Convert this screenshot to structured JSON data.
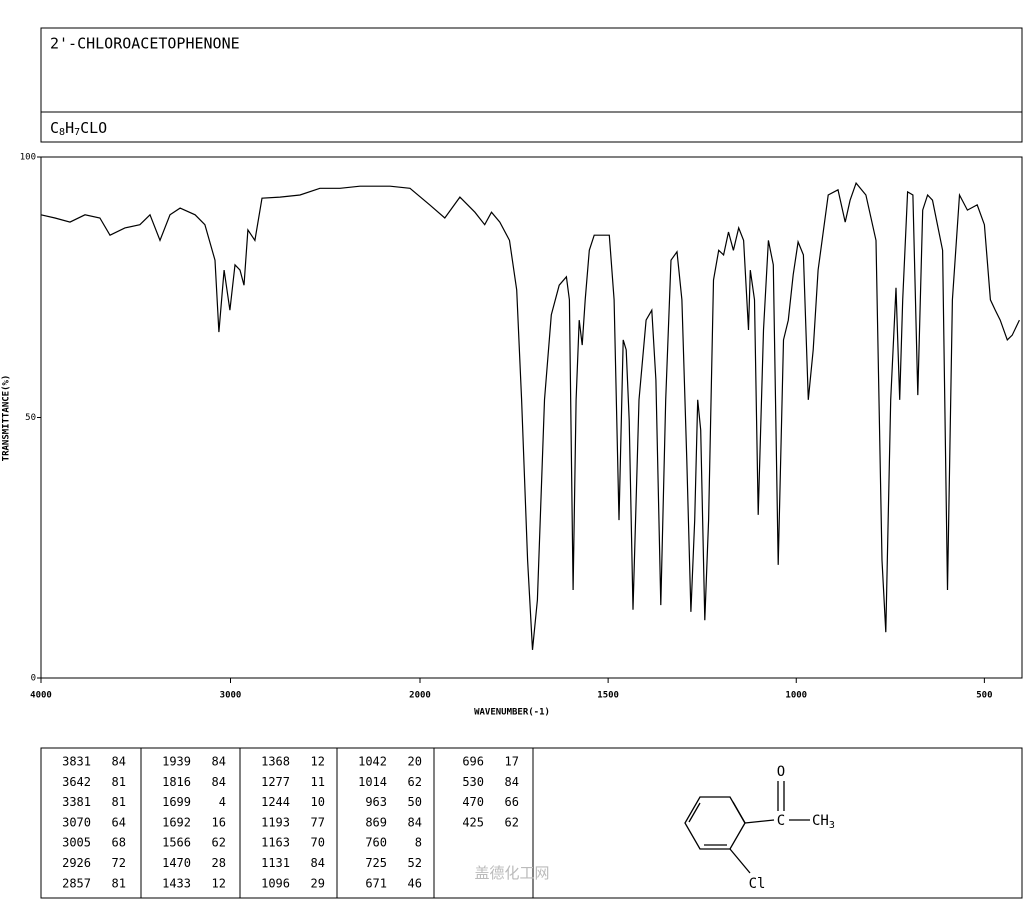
{
  "header": {
    "title": "2'-CHLOROACETOPHENONE",
    "formula": [
      "C",
      "8",
      "H",
      "7",
      "CLO"
    ]
  },
  "chart_data": {
    "type": "line",
    "y_label": "TRANSMITTANCE(%)",
    "x_label": "WAVENUMBER(-1)",
    "xlim": [
      4000,
      400
    ],
    "x_scale_break": 2000,
    "ylim": [
      0,
      100
    ],
    "xticks": [
      4000,
      3000,
      2000,
      1500,
      1000,
      500
    ],
    "yticks": [
      0,
      50,
      100
    ],
    "color": "#000000",
    "x": [
      4000,
      3926,
      3847,
      3768,
      3689,
      3636,
      3557,
      3478,
      3425,
      3372,
      3319,
      3266,
      3187,
      3135,
      3082,
      3061,
      3034,
      3003,
      2976,
      2950,
      2929,
      2908,
      2871,
      2834,
      2739,
      2633,
      2528,
      2422,
      2317,
      2158,
      2053,
      1974,
      1934,
      1894,
      1854,
      1828,
      1810,
      1788,
      1762,
      1743,
      1730,
      1714,
      1701,
      1688,
      1669,
      1651,
      1630,
      1611,
      1603,
      1593,
      1585,
      1577,
      1569,
      1561,
      1550,
      1537,
      1497,
      1484,
      1471,
      1460,
      1452,
      1444,
      1434,
      1418,
      1399,
      1384,
      1373,
      1360,
      1347,
      1333,
      1317,
      1304,
      1291,
      1280,
      1270,
      1262,
      1254,
      1243,
      1233,
      1220,
      1206,
      1193,
      1180,
      1167,
      1153,
      1140,
      1127,
      1122,
      1111,
      1101,
      1087,
      1074,
      1061,
      1048,
      1034,
      1021,
      1008,
      995,
      981,
      968,
      955,
      942,
      915,
      889,
      870,
      857,
      841,
      815,
      788,
      772,
      762,
      749,
      735,
      725,
      717,
      704,
      690,
      677,
      664,
      651,
      638,
      611,
      598,
      585,
      566,
      545,
      519,
      500,
      484,
      471,
      458,
      439,
      426,
      407
    ],
    "values": [
      88.9,
      88.3,
      87.5,
      88.9,
      88.3,
      85,
      86.4,
      87,
      88.9,
      84,
      88.9,
      90.2,
      88.9,
      87,
      80.2,
      66.4,
      78.3,
      70.6,
      79.3,
      78.3,
      75.4,
      86,
      84,
      92.1,
      92.3,
      92.7,
      94,
      94,
      94.4,
      94.4,
      94,
      90.8,
      88.3,
      92.3,
      89.4,
      87,
      89.4,
      87.5,
      84,
      74.5,
      53.4,
      22.6,
      5.4,
      15,
      53.4,
      69.7,
      75.4,
      77,
      72.6,
      16.9,
      53.4,
      68.7,
      63.9,
      72.6,
      82.1,
      85,
      85,
      72.6,
      30.3,
      64.9,
      63,
      49.5,
      13.1,
      53.4,
      68.7,
      70.6,
      57.2,
      14,
      53.4,
      80.2,
      81.8,
      72.6,
      41.8,
      12.7,
      30.3,
      53.4,
      47.6,
      11.1,
      30.3,
      76.4,
      82.1,
      81.2,
      85.6,
      82.1,
      86.4,
      84,
      66.8,
      78.3,
      72.6,
      31.3,
      66.8,
      84,
      79.3,
      21.7,
      64.9,
      68.7,
      77.4,
      83.7,
      81.2,
      53.4,
      63,
      78.3,
      92.7,
      93.7,
      87.5,
      91.7,
      95,
      92.7,
      84,
      22.6,
      8.8,
      53.4,
      74.9,
      53.4,
      72.6,
      93.3,
      92.7,
      54.3,
      89.8,
      92.7,
      91.7,
      82.1,
      16.9,
      72.6,
      92.7,
      89.8,
      90.8,
      87,
      72.6,
      70.6,
      68.7,
      64.9,
      65.8,
      68.7
    ]
  },
  "peak_table": {
    "columns": [
      [
        [
          3831,
          84
        ],
        [
          3642,
          81
        ],
        [
          3381,
          81
        ],
        [
          3070,
          64
        ],
        [
          3005,
          68
        ],
        [
          2926,
          72
        ],
        [
          2857,
          81
        ]
      ],
      [
        [
          1939,
          84
        ],
        [
          1816,
          84
        ],
        [
          1699,
          4
        ],
        [
          1692,
          16
        ],
        [
          1566,
          62
        ],
        [
          1470,
          28
        ],
        [
          1433,
          12
        ]
      ],
      [
        [
          1368,
          12
        ],
        [
          1277,
          11
        ],
        [
          1244,
          10
        ],
        [
          1193,
          77
        ],
        [
          1163,
          70
        ],
        [
          1131,
          84
        ],
        [
          1096,
          29
        ]
      ],
      [
        [
          1042,
          20
        ],
        [
          1014,
          62
        ],
        [
          963,
          50
        ],
        [
          869,
          84
        ],
        [
          760,
          8
        ],
        [
          725,
          52
        ],
        [
          671,
          46
        ]
      ],
      [
        [
          696,
          17
        ],
        [
          530,
          84
        ],
        [
          470,
          66
        ],
        [
          425,
          62
        ]
      ]
    ]
  },
  "structure": {
    "oxygen": "O",
    "carbon": "C",
    "methyl": [
      "CH",
      "3"
    ],
    "chlorine": "Cl"
  },
  "watermark": "盖德化工网"
}
